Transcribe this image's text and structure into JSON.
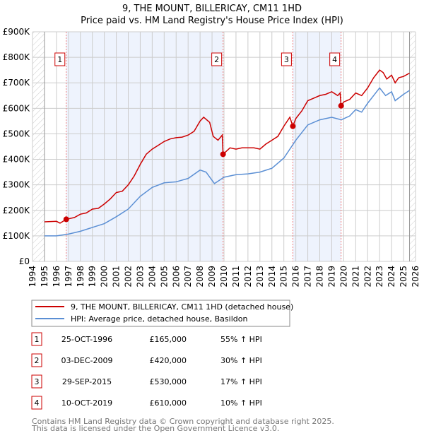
{
  "chart_data": {
    "type": "line",
    "title": "9, THE MOUNT, BILLERICAY, CM11 1HD",
    "subtitle": "Price paid vs. HM Land Registry's House Price Index (HPI)",
    "xlim": [
      1994,
      2026
    ],
    "ylim": [
      0,
      900000
    ],
    "x_ticks": [
      "1994",
      "1995",
      "1996",
      "1997",
      "1998",
      "1999",
      "2000",
      "2001",
      "2002",
      "2003",
      "2004",
      "2005",
      "2006",
      "2007",
      "2008",
      "2009",
      "2010",
      "2011",
      "2012",
      "2013",
      "2014",
      "2015",
      "2016",
      "2017",
      "2018",
      "2019",
      "2020",
      "2021",
      "2022",
      "2023",
      "2024",
      "2025",
      "2026"
    ],
    "y_ticks": [
      {
        "v": 0,
        "label": "£0"
      },
      {
        "v": 100000,
        "label": "£100K"
      },
      {
        "v": 200000,
        "label": "£200K"
      },
      {
        "v": 300000,
        "label": "£300K"
      },
      {
        "v": 400000,
        "label": "£400K"
      },
      {
        "v": 500000,
        "label": "£500K"
      },
      {
        "v": 600000,
        "label": "£600K"
      },
      {
        "v": 700000,
        "label": "£700K"
      },
      {
        "v": 800000,
        "label": "£800K"
      },
      {
        "v": 900000,
        "label": "£900K"
      }
    ],
    "grid": true,
    "shaded_ranges": [
      [
        1996.82,
        2009.92
      ],
      [
        2015.75,
        2019.78
      ]
    ],
    "hatched_ranges": [
      [
        1994,
        1995
      ],
      [
        2025.5,
        2026
      ]
    ],
    "series": [
      {
        "name": "9, THE MOUNT, BILLERICAY, CM11 1HD (detached house)",
        "color": "#cc0000",
        "x": [
          1995,
          1996,
          1996.3,
          1996.82,
          1997.5,
          1998,
          1998.5,
          1999,
          1999.5,
          2000,
          2000.5,
          2001,
          2001.5,
          2002,
          2002.5,
          2003,
          2003.5,
          2004,
          2004.5,
          2005,
          2005.5,
          2006,
          2006.5,
          2007,
          2007.5,
          2008,
          2008.3,
          2008.8,
          2009.1,
          2009.5,
          2009.85,
          2009.92,
          2010.5,
          2011,
          2011.5,
          2012,
          2012.5,
          2013,
          2013.5,
          2014,
          2014.5,
          2015,
          2015.5,
          2015.75,
          2016,
          2016.5,
          2017,
          2017.5,
          2018,
          2018.5,
          2019,
          2019.5,
          2019.7,
          2019.78,
          2020,
          2020.5,
          2021,
          2021.5,
          2022,
          2022.5,
          2023,
          2023.3,
          2023.6,
          2024,
          2024.3,
          2024.6,
          2025,
          2025.5
        ],
        "y": [
          155000,
          157000,
          150000,
          165000,
          172000,
          185000,
          190000,
          205000,
          208000,
          225000,
          245000,
          270000,
          275000,
          300000,
          335000,
          380000,
          420000,
          440000,
          455000,
          470000,
          480000,
          485000,
          487000,
          495000,
          510000,
          550000,
          565000,
          545000,
          490000,
          475000,
          495000,
          420000,
          445000,
          440000,
          445000,
          445000,
          445000,
          440000,
          460000,
          475000,
          490000,
          530000,
          565000,
          530000,
          560000,
          590000,
          630000,
          640000,
          650000,
          655000,
          665000,
          650000,
          660000,
          610000,
          625000,
          635000,
          660000,
          650000,
          680000,
          720000,
          750000,
          740000,
          715000,
          730000,
          700000,
          720000,
          725000,
          738000
        ]
      },
      {
        "name": "HPI: Average price, detached house, Basildon",
        "color": "#5b8fd4",
        "x": [
          1995,
          1996,
          1997,
          1998,
          1999,
          2000,
          2001,
          2002,
          2003,
          2004,
          2005,
          2006,
          2007,
          2008,
          2008.5,
          2009.2,
          2010,
          2011,
          2012,
          2013,
          2014,
          2015,
          2016,
          2017,
          2018,
          2019,
          2019.8,
          2020.5,
          2021,
          2021.5,
          2022,
          2022.5,
          2023,
          2023.5,
          2024,
          2024.3,
          2025,
          2025.5
        ],
        "y": [
          100000,
          100000,
          107000,
          118000,
          133000,
          148000,
          175000,
          205000,
          255000,
          290000,
          308000,
          312000,
          325000,
          358000,
          350000,
          305000,
          330000,
          340000,
          343000,
          350000,
          365000,
          405000,
          475000,
          535000,
          555000,
          565000,
          555000,
          570000,
          595000,
          585000,
          620000,
          650000,
          680000,
          650000,
          665000,
          630000,
          655000,
          670000
        ]
      }
    ],
    "markers": [
      {
        "label": "1",
        "x": 1996.82,
        "y": 165000
      },
      {
        "label": "2",
        "x": 2009.92,
        "y": 420000
      },
      {
        "label": "3",
        "x": 2015.75,
        "y": 530000
      },
      {
        "label": "4",
        "x": 2019.78,
        "y": 610000
      }
    ]
  },
  "legend": {
    "items": [
      "9, THE MOUNT, BILLERICAY, CM11 1HD (detached house)",
      "HPI: Average price, detached house, Basildon"
    ]
  },
  "transactions": [
    {
      "num": "1",
      "date": "25-OCT-1996",
      "price": "£165,000",
      "hpi": "55% ↑ HPI"
    },
    {
      "num": "2",
      "date": "03-DEC-2009",
      "price": "£420,000",
      "hpi": "30% ↑ HPI"
    },
    {
      "num": "3",
      "date": "29-SEP-2015",
      "price": "£530,000",
      "hpi": "17% ↑ HPI"
    },
    {
      "num": "4",
      "date": "10-OCT-2019",
      "price": "£610,000",
      "hpi": "10% ↑ HPI"
    }
  ],
  "footer": {
    "line1": "Contains HM Land Registry data © Crown copyright and database right 2025.",
    "line2": "This data is licensed under the Open Government Licence v3.0."
  }
}
